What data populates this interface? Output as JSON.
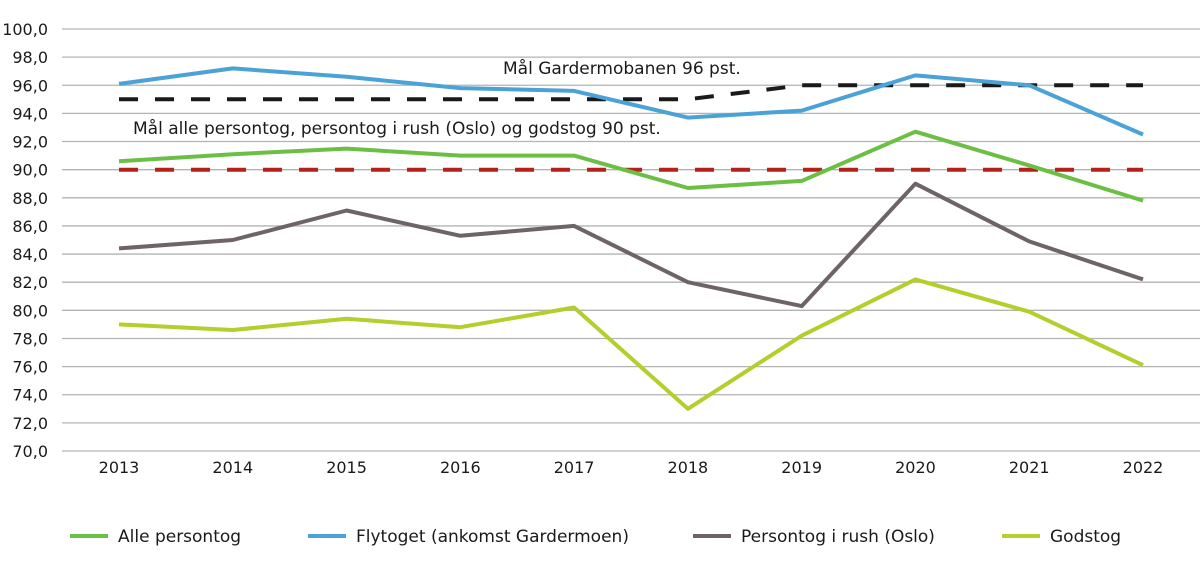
{
  "chart_data": {
    "type": "line",
    "title": "",
    "xlabel": "",
    "ylabel": "",
    "ylim": [
      70,
      100
    ],
    "ytick_step": 2,
    "ytick_labels": [
      "70,0",
      "72,0",
      "74,0",
      "76,0",
      "78,0",
      "80,0",
      "82,0",
      "84,0",
      "86,0",
      "88,0",
      "90,0",
      "92,0",
      "94,0",
      "96,0",
      "98,0",
      "100,0"
    ],
    "grid": true,
    "legend_position": "bottom",
    "categories": [
      "2013",
      "2014",
      "2015",
      "2016",
      "2017",
      "2018",
      "2019",
      "2020",
      "2021",
      "2022"
    ],
    "series": [
      {
        "name": "Alle persontog",
        "color": "#6cbf45",
        "values": [
          90.6,
          91.1,
          91.5,
          91.0,
          91.0,
          88.7,
          89.2,
          92.7,
          90.3,
          87.8
        ]
      },
      {
        "name": "Flytoget (ankomst Gardermoen)",
        "color": "#4ba2d6",
        "values": [
          96.1,
          97.2,
          96.6,
          95.8,
          95.6,
          93.7,
          94.2,
          96.7,
          96.0,
          92.5
        ]
      },
      {
        "name": "Persontog i rush (Oslo)",
        "color": "#6e6366",
        "values": [
          84.4,
          85.0,
          87.1,
          85.3,
          86.0,
          82.0,
          80.3,
          89.0,
          84.9,
          82.2
        ]
      },
      {
        "name": "Godstog",
        "color": "#b4ce2b",
        "values": [
          79.0,
          78.6,
          79.4,
          78.8,
          80.2,
          73.0,
          78.2,
          82.2,
          79.9,
          76.1
        ]
      }
    ],
    "target_lines": [
      {
        "label": "Mål Gardermobanen 96 pst.",
        "color": "#1a1a1a",
        "style": "dashed",
        "values": [
          95,
          95,
          95,
          95,
          95,
          95,
          96,
          96,
          96,
          96
        ]
      },
      {
        "label": "Mål alle persontog, persontog i rush (Oslo) og godstog 90 pst.",
        "color": "#b3221a",
        "style": "dashed",
        "values": [
          90,
          90,
          90,
          90,
          90,
          90,
          90,
          90,
          90,
          90
        ]
      }
    ]
  }
}
